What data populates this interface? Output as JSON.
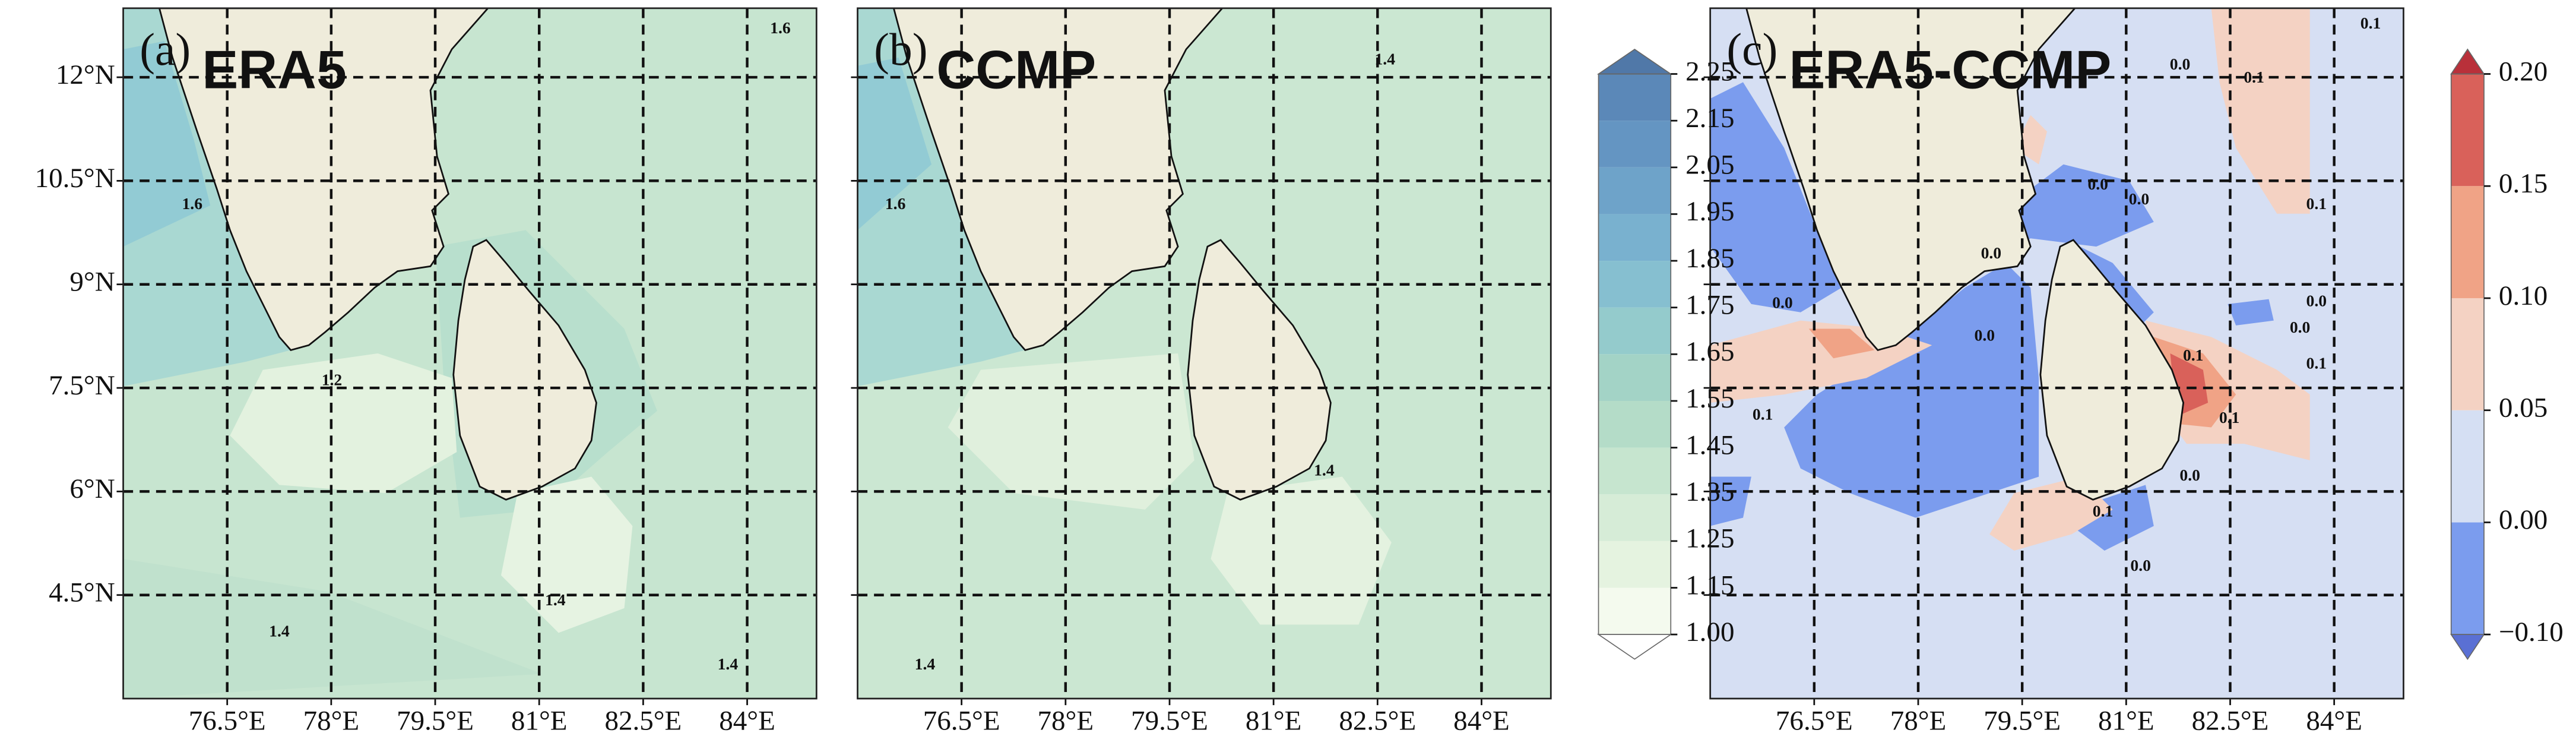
{
  "panels": [
    {
      "tag": "(a)",
      "title": "ERA5",
      "contour_labels": [
        "1.6",
        "1.6",
        "1.2",
        "1.4",
        "1.4",
        "1.4"
      ]
    },
    {
      "tag": "(b)",
      "title": "CCMP",
      "contour_labels": [
        "1.4",
        "1.6",
        "1.4",
        "1.4"
      ]
    },
    {
      "tag": "(c)",
      "title": "ERA5-CCMP",
      "contour_labels": [
        "0.1",
        "0.0",
        "0.1",
        "0.1",
        "0.0",
        "0.0",
        "0.0",
        "0.0",
        "0.0",
        "0.1",
        "0.0",
        "0.0",
        "0.1",
        "0.1",
        "0.1",
        "0.0",
        "0.1",
        "0.0"
      ]
    }
  ],
  "extent": {
    "lon": [
      75,
      85
    ],
    "lat": [
      3,
      13
    ]
  },
  "lat_ticks": [
    {
      "value": 12,
      "label": "12°N"
    },
    {
      "value": 10.5,
      "label": "10.5°N"
    },
    {
      "value": 9,
      "label": "9°N"
    },
    {
      "value": 7.5,
      "label": "7.5°N"
    },
    {
      "value": 6,
      "label": "6°N"
    },
    {
      "value": 4.5,
      "label": "4.5°N"
    }
  ],
  "lon_ticks": [
    {
      "value": 76.5,
      "label": "76.5°E"
    },
    {
      "value": 78,
      "label": "78°E"
    },
    {
      "value": 79.5,
      "label": "79.5°E"
    },
    {
      "value": 81,
      "label": "81°E"
    },
    {
      "value": 82.5,
      "label": "82.5°E"
    },
    {
      "value": 84,
      "label": "84°E"
    }
  ],
  "colorbars": [
    {
      "ticks": [
        {
          "value": 1,
          "label": "1.00"
        },
        1.15,
        1.25,
        1.35,
        1.45,
        1.55,
        1.65,
        1.75,
        1.85,
        1.95,
        2.05,
        2.15,
        2.25
      ],
      "colors": [
        "#f4faee",
        "#e5f3e0",
        "#d6ecd7",
        "#c6e5cf",
        "#b4dcc8",
        "#a3d3c6",
        "#94cbcc",
        "#86bfd0",
        "#79b1cf",
        "#6ea3c9",
        "#6495c2",
        "#5b88b8"
      ],
      "under": "#ffffff",
      "over": "#5078a8"
    },
    {
      "ticks": [
        {
          "value": -0.1,
          "label": "−0.10"
        },
        {
          "value": 0,
          "label": "0.00"
        },
        0.05,
        {
          "value": 0.1,
          "label": "0.10"
        },
        0.15,
        {
          "value": 0.2,
          "label": "0.20"
        }
      ],
      "colors": [
        "#7b9cee",
        "#d5dff3",
        "#f4d2c3",
        "#f0a386",
        "#d9615a"
      ],
      "under": "#5a70d4",
      "over": "#b9303a"
    }
  ]
}
